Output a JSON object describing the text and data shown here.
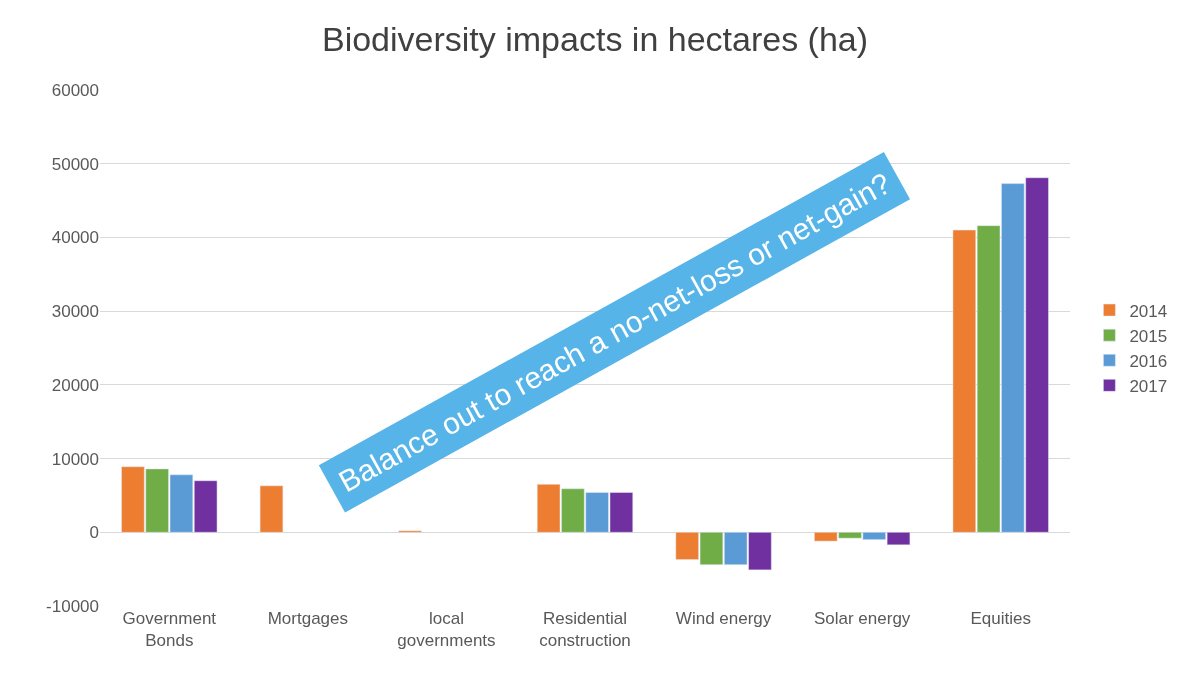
{
  "chart_data": {
    "type": "bar",
    "title": "Biodiversity impacts in hectares (ha)",
    "categories": [
      "Government Bonds",
      "Mortgages",
      "local governments",
      "Residential construction",
      "Wind energy",
      "Solar energy",
      "Equities"
    ],
    "series": [
      {
        "name": "2014",
        "color": "#ed7d31",
        "values": [
          8900,
          6300,
          200,
          6500,
          -3700,
          -1200,
          41000
        ]
      },
      {
        "name": "2015",
        "color": "#70ad47",
        "values": [
          8600,
          null,
          null,
          5900,
          -4400,
          -800,
          41600
        ]
      },
      {
        "name": "2016",
        "color": "#5b9bd5",
        "values": [
          7800,
          null,
          null,
          5400,
          -4400,
          -1000,
          47300
        ]
      },
      {
        "name": "2017",
        "color": "#7030a0",
        "values": [
          7000,
          null,
          null,
          5400,
          -5100,
          -1700,
          48100
        ]
      }
    ],
    "ylim": [
      -10000,
      60000
    ],
    "yticks": [
      -10000,
      0,
      10000,
      20000,
      30000,
      40000,
      50000,
      60000
    ],
    "grid": "y",
    "legend": "right",
    "annotations": [
      "Balance out to reach a no-net-loss or net-gain?"
    ]
  }
}
